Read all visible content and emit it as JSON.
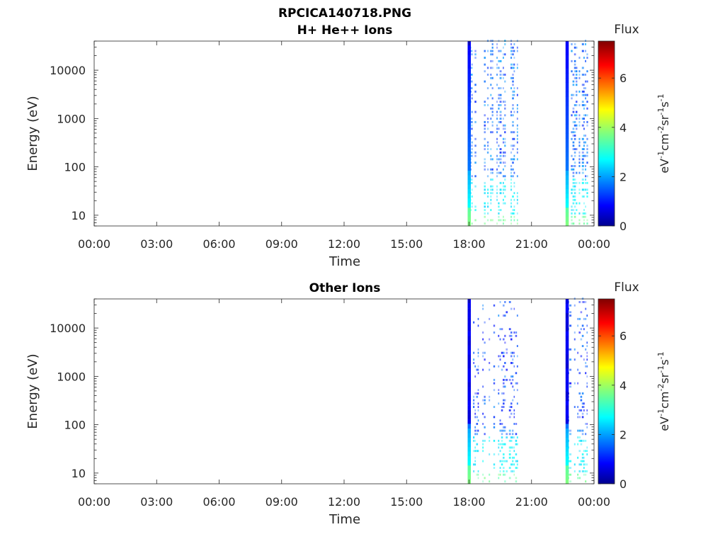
{
  "title_lines": [
    "RPCICA140718.PNG"
  ],
  "chart_data": [
    {
      "type": "heatmap",
      "title": "H+ He++ Ions",
      "xlabel": "Time",
      "ylabel": "Energy (eV)",
      "x_ticks": [
        "00:00",
        "03:00",
        "06:00",
        "09:00",
        "12:00",
        "15:00",
        "18:00",
        "21:00",
        "00:00"
      ],
      "x_range_hours": [
        0,
        24
      ],
      "y_scale": "log",
      "y_range": [
        6,
        40000
      ],
      "y_ticks": [
        10,
        100,
        1000,
        10000
      ],
      "y_tick_labels": [
        "10",
        "100",
        "1000",
        "10000"
      ],
      "colorbar": {
        "label": "Flux",
        "units_parts": [
          "eV",
          "-1",
          "cm",
          "-2",
          "sr",
          "-1",
          "s",
          "-1"
        ],
        "range": [
          0,
          7.5
        ],
        "ticks": [
          0,
          2,
          4,
          6
        ],
        "tick_labels": [
          "0",
          "2",
          "4",
          "6"
        ],
        "colormap": "jet"
      },
      "data_bursts_hours": [
        [
          18.0,
          20.3
        ],
        [
          22.7,
          23.65
        ]
      ],
      "strong_columns_hours": [
        18.0,
        22.7
      ]
    },
    {
      "type": "heatmap",
      "title": "Other Ions",
      "xlabel": "Time",
      "ylabel": "Energy (eV)",
      "x_ticks": [
        "00:00",
        "03:00",
        "06:00",
        "09:00",
        "12:00",
        "15:00",
        "18:00",
        "21:00",
        "00:00"
      ],
      "x_range_hours": [
        0,
        24
      ],
      "y_scale": "log",
      "y_range": [
        6,
        40000
      ],
      "y_ticks": [
        10,
        100,
        1000,
        10000
      ],
      "y_tick_labels": [
        "10",
        "100",
        "1000",
        "10000"
      ],
      "colorbar": {
        "label": "Flux",
        "units_parts": [
          "eV",
          "-1",
          "cm",
          "-2",
          "sr",
          "-1",
          "s",
          "-1"
        ],
        "range": [
          0,
          7.5
        ],
        "ticks": [
          0,
          2,
          4,
          6
        ],
        "tick_labels": [
          "0",
          "2",
          "4",
          "6"
        ],
        "colormap": "jet"
      },
      "data_bursts_hours": [
        [
          18.0,
          20.3
        ],
        [
          22.7,
          23.65
        ]
      ],
      "strong_columns_hours": [
        18.0,
        22.7
      ]
    }
  ]
}
